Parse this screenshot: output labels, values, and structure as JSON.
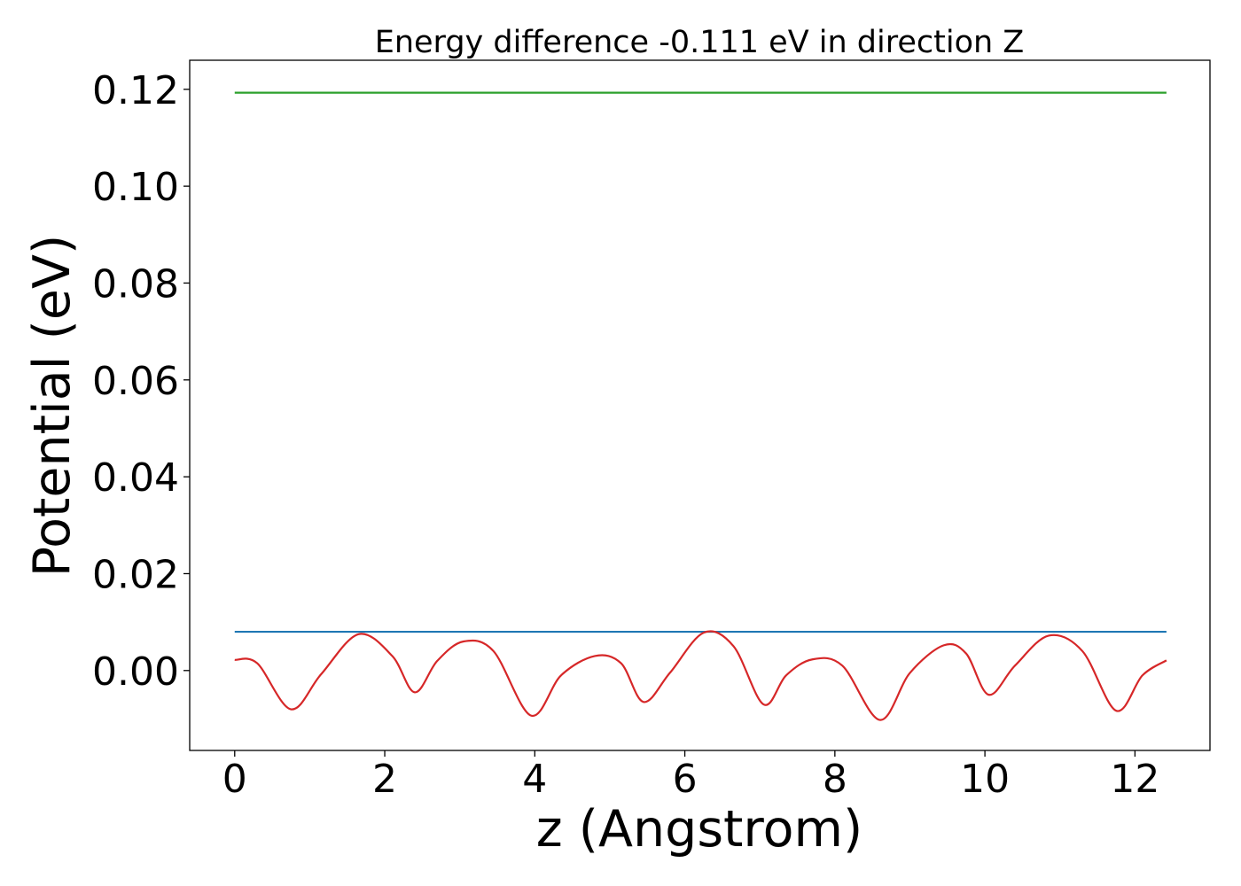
{
  "chart_data": {
    "type": "line",
    "title": "Energy difference -0.111 eV in direction Z",
    "xlabel": "z (Angstrom)",
    "ylabel": "Potential (eV)",
    "xlim": [
      -0.6,
      13.0
    ],
    "ylim": [
      -0.0165,
      0.126
    ],
    "xticks": [
      0,
      2,
      4,
      6,
      8,
      10,
      12
    ],
    "xtick_labels": [
      "0",
      "2",
      "4",
      "6",
      "8",
      "10",
      "12"
    ],
    "yticks": [
      0.0,
      0.02,
      0.04,
      0.06,
      0.08,
      0.1,
      0.12
    ],
    "ytick_labels": [
      "0.00",
      "0.02",
      "0.04",
      "0.06",
      "0.08",
      "0.10",
      "0.12"
    ],
    "grid": false,
    "legend": "none",
    "series": [
      {
        "color": "#2ca02c",
        "x": [
          0.0,
          12.42
        ],
        "y": [
          0.1193,
          0.1193
        ]
      },
      {
        "color": "#1f77b4",
        "x": [
          0.0,
          12.42
        ],
        "y": [
          0.008,
          0.008
        ]
      },
      {
        "color": "#d62728",
        "x": [
          0.0,
          0.3,
          0.75,
          1.15,
          1.65,
          2.1,
          2.4,
          2.7,
          3.05,
          3.45,
          3.95,
          4.35,
          4.8,
          5.15,
          5.45,
          5.8,
          6.25,
          6.65,
          7.05,
          7.35,
          7.7,
          8.1,
          8.6,
          9.0,
          9.45,
          9.75,
          10.05,
          10.4,
          10.85,
          11.3,
          11.75,
          12.1,
          12.42
        ],
        "y": [
          0.0022,
          0.0015,
          -0.008,
          -0.0008,
          0.0075,
          0.003,
          -0.0045,
          0.002,
          0.006,
          0.004,
          -0.0093,
          -0.001,
          0.003,
          0.0015,
          -0.0065,
          -0.0005,
          0.0078,
          0.005,
          -0.007,
          -0.001,
          0.0023,
          0.001,
          -0.0102,
          -0.0005,
          0.0052,
          0.0035,
          -0.005,
          0.001,
          0.0072,
          0.004,
          -0.0083,
          -0.001,
          0.0021
        ]
      }
    ]
  }
}
